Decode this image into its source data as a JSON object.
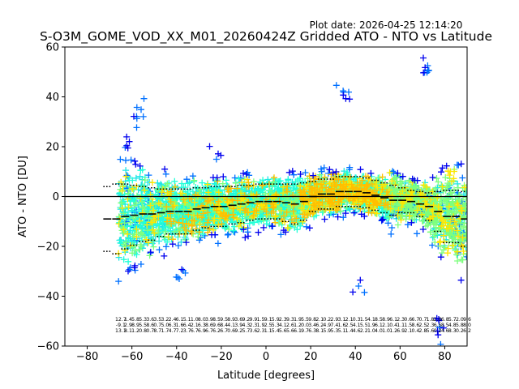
{
  "chart_data": {
    "type": "scatter",
    "title": "S-O3M_GOME_VOD_XX_M01_20260424Z Gridded ATO - NTO vs Latitude",
    "plot_date": "Plot date: 2026-04-25 12:14:20",
    "xlabel": "Latitude [degrees]",
    "ylabel": "ATO - NTO [DU]",
    "xlim": [
      -90,
      90
    ],
    "ylim": [
      -60,
      60
    ],
    "xticks": [
      -80,
      -60,
      -40,
      -20,
      0,
      20,
      40,
      60,
      80
    ],
    "yticks": [
      -60,
      -40,
      -20,
      0,
      20,
      40,
      60
    ],
    "xtick_labels": [
      "−80",
      "−60",
      "−40",
      "−20",
      "0",
      "20",
      "40",
      "60",
      "80"
    ],
    "ytick_labels": [
      "−60",
      "−40",
      "−20",
      "0",
      "20",
      "40",
      "60"
    ],
    "colors": {
      "blue": "#0000ee",
      "azure": "#0070ff",
      "cyan": "#1ee6e6",
      "aqua": "#22ffd8",
      "green": "#7dff7d",
      "yellow": "#ffe600",
      "gold": "#ffbf00",
      "black": "#000000"
    },
    "zero_line": 0,
    "bins": {
      "lat": [
        -71,
        -67,
        -63,
        -59,
        -55,
        -51,
        -47,
        -43,
        -39,
        -35,
        -31,
        -27,
        -23,
        -19,
        -15,
        -11,
        -7,
        -3,
        1,
        5,
        9,
        13,
        17,
        21,
        25,
        29,
        33,
        37,
        41,
        45,
        49,
        53,
        57,
        61,
        65,
        69,
        73,
        77,
        81,
        85,
        89
      ],
      "mean": [
        -9,
        -9,
        -8,
        -7.5,
        -7,
        -7,
        -6.5,
        -6,
        -6,
        -6,
        -5,
        -4.5,
        -4,
        -4,
        -3.5,
        -3,
        -2.5,
        -2,
        -2,
        -2,
        -2.5,
        -3,
        -2,
        0,
        1,
        1,
        2,
        2,
        2,
        1.5,
        0.5,
        -0.5,
        -1.5,
        -1.5,
        -2,
        -3,
        -4,
        -6,
        -8,
        -8,
        -9
      ],
      "upper": [
        4,
        5,
        5,
        4.5,
        4,
        3.5,
        3,
        3,
        3,
        3,
        3.5,
        3.5,
        4,
        4,
        4,
        4.5,
        4.5,
        5,
        5,
        5,
        5,
        5,
        5.5,
        6,
        7,
        7,
        8,
        8,
        8,
        7.5,
        6.5,
        5.5,
        4.5,
        3.5,
        2.5,
        2,
        1.5,
        2,
        2.5,
        2.5,
        2
      ],
      "lower": [
        -22,
        -23,
        -21,
        -19.5,
        -18,
        -17.5,
        -16,
        -15,
        -15,
        -15,
        -13.5,
        -12.5,
        -12,
        -12,
        -11,
        -10.5,
        -9.5,
        -9,
        -9,
        -9,
        -10,
        -11,
        -9.5,
        -6,
        -5,
        -5,
        -4,
        -4,
        -4,
        -4.5,
        -5.5,
        -6.5,
        -7.5,
        -6.5,
        -6.5,
        -8,
        -9.5,
        -14,
        -18.5,
        -18.5,
        -20
      ]
    },
    "bin_stats": {
      "row1": [
        "12.7",
        "1.4",
        "5.8",
        "5.3",
        "3.6",
        "3.5",
        "3.2",
        "2.4",
        "6.1",
        "5.1",
        "1.0",
        "8.0",
        "3.9",
        "8.5",
        "9.5",
        "8.9",
        "3.6",
        "9.2",
        "9.9",
        "1.5",
        "9.1",
        "5.9",
        "2.3",
        "9.3",
        "1.9",
        "5.5",
        "9.8",
        "2.1",
        "0.2",
        "2.9",
        "3.1",
        "2.1",
        "0.3",
        "1.5",
        "4.1",
        "8.5",
        "8.9",
        "6.1",
        "2.3",
        "0.6",
        "6.7",
        "0.7",
        "1.8",
        "2.0",
        "6.8",
        "5.7",
        "2.0",
        "9.6"
      ],
      "row2": [
        "-9.1",
        "2.9",
        "8.9",
        "5.5",
        "8.6",
        "0.7",
        "5.0",
        "6.3",
        "1.6",
        "6.4",
        "2.1",
        "6.3",
        "8.6",
        "9.6",
        "8.4",
        "4.1",
        "3.9",
        "4.3",
        "2.3",
        "1.9",
        "2.5",
        "5.3",
        "4.1",
        "2.6",
        "1.2",
        "0.0",
        "3.4",
        "6.2",
        "4.9",
        "7.4",
        "1.6",
        "2.5",
        "4.1",
        "5.5",
        "1.9",
        "6.1",
        "2.1",
        "0.4",
        "1.1",
        "1.5",
        "8.6",
        "2.5",
        "2.3",
        "6.5",
        "8.5",
        "4.8",
        "5.8",
        "8.0"
      ],
      "row3": [
        "13.1",
        "8.1",
        "1.2",
        "0.8",
        "0.7",
        "8.7",
        "1.7",
        "4.7",
        "7.2",
        "3.7",
        "6.7",
        "6.9",
        "6.7",
        "6.2",
        "6.7",
        "0.6",
        "9.2",
        "5.7",
        "3.6",
        "2.3",
        "1.1",
        "5.4",
        "5.6",
        "5.6",
        "6.1",
        "9.7",
        "6.3",
        "8.1",
        "5.9",
        "5.3",
        "5.1",
        "1.4",
        "4.6",
        "2.2",
        "1.0",
        "4.0",
        "1.0",
        "1.2",
        "6.9",
        "2.1",
        "0.4",
        "2.8",
        "5.6",
        "0.2",
        "4.6",
        "8.3",
        "0.2",
        "6.2"
      ]
    }
  }
}
